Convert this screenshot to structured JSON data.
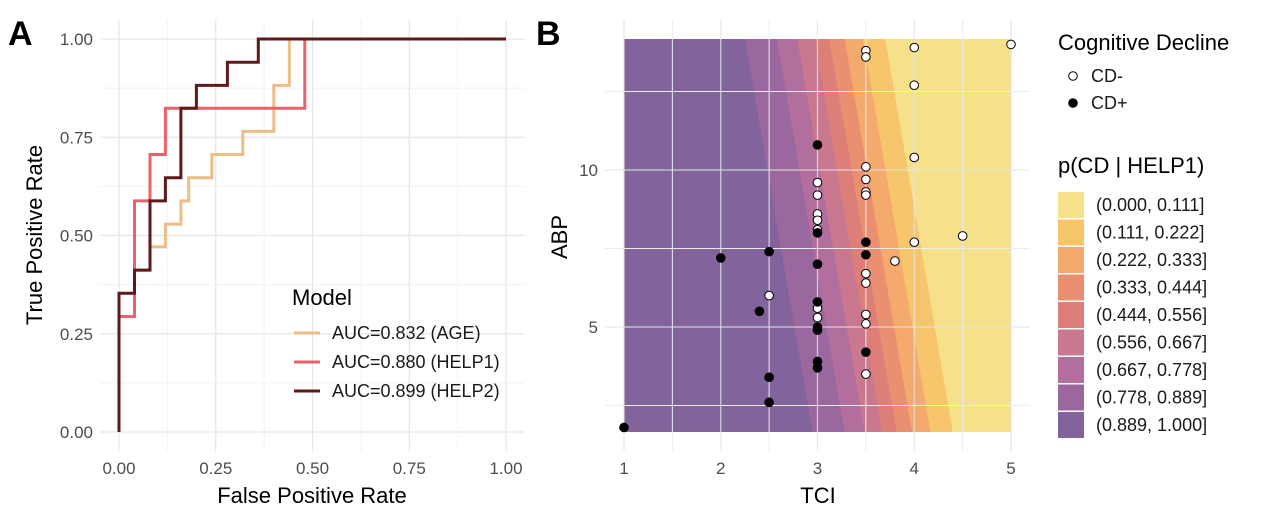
{
  "panel_a": {
    "label": "A",
    "chart_data": {
      "type": "line",
      "xlabel": "False Positive Rate",
      "ylabel": "True Positive Rate",
      "xlim": [
        0,
        1
      ],
      "ylim": [
        0,
        1
      ],
      "x_ticks": [
        "0.00",
        "0.25",
        "0.50",
        "0.75",
        "1.00"
      ],
      "y_ticks": [
        "0.00",
        "0.25",
        "0.50",
        "0.75",
        "1.00"
      ],
      "grid": true,
      "legend_title": "Model",
      "legend_position": "bottom-right",
      "series": [
        {
          "name": "AUC=0.832 (AGE)",
          "color": "#ebbe86",
          "points": [
            [
              0,
              0
            ],
            [
              0,
              0.294
            ],
            [
              0.04,
              0.294
            ],
            [
              0.04,
              0.412
            ],
            [
              0.08,
              0.412
            ],
            [
              0.08,
              0.471
            ],
            [
              0.12,
              0.471
            ],
            [
              0.12,
              0.529
            ],
            [
              0.16,
              0.529
            ],
            [
              0.16,
              0.588
            ],
            [
              0.18,
              0.588
            ],
            [
              0.18,
              0.647
            ],
            [
              0.24,
              0.647
            ],
            [
              0.24,
              0.706
            ],
            [
              0.32,
              0.706
            ],
            [
              0.32,
              0.765
            ],
            [
              0.36,
              0.765
            ],
            [
              0.36,
              0.765
            ],
            [
              0.4,
              0.765
            ],
            [
              0.4,
              0.882
            ],
            [
              0.44,
              0.882
            ],
            [
              0.44,
              1.0
            ],
            [
              1.0,
              1.0
            ]
          ]
        },
        {
          "name": "AUC=0.880 (HELP1)",
          "color": "#e8636a",
          "points": [
            [
              0,
              0
            ],
            [
              0,
              0.294
            ],
            [
              0.04,
              0.294
            ],
            [
              0.04,
              0.588
            ],
            [
              0.08,
              0.588
            ],
            [
              0.08,
              0.706
            ],
            [
              0.12,
              0.706
            ],
            [
              0.12,
              0.824
            ],
            [
              0.48,
              0.824
            ],
            [
              0.48,
              1.0
            ],
            [
              1.0,
              1.0
            ]
          ]
        },
        {
          "name": "AUC=0.899 (HELP2)",
          "color": "#5c1a1a",
          "points": [
            [
              0,
              0
            ],
            [
              0,
              0.353
            ],
            [
              0.04,
              0.353
            ],
            [
              0.04,
              0.412
            ],
            [
              0.08,
              0.412
            ],
            [
              0.08,
              0.588
            ],
            [
              0.12,
              0.588
            ],
            [
              0.12,
              0.647
            ],
            [
              0.16,
              0.647
            ],
            [
              0.16,
              0.824
            ],
            [
              0.2,
              0.824
            ],
            [
              0.2,
              0.882
            ],
            [
              0.28,
              0.882
            ],
            [
              0.28,
              0.941
            ],
            [
              0.36,
              0.941
            ],
            [
              0.36,
              1.0
            ],
            [
              1.0,
              1.0
            ]
          ]
        }
      ]
    }
  },
  "panel_b": {
    "label": "B",
    "chart_data": {
      "type": "scatter",
      "xlabel": "TCI",
      "ylabel": "ABP",
      "xlim": [
        0.92,
        5.08
      ],
      "ylim": [
        1.6,
        14.3
      ],
      "x_ticks": [
        "1",
        "2",
        "3",
        "4",
        "5"
      ],
      "y_ticks": [
        "5",
        "10"
      ],
      "grid": true,
      "background_contour": {
        "legend_title": "p(CD | HELP1)",
        "bands": [
          {
            "label": "(0.000, 0.111]",
            "color": "#f7e08a"
          },
          {
            "label": "(0.111, 0.222]",
            "color": "#f7c56c"
          },
          {
            "label": "(0.222, 0.333]",
            "color": "#f3aa6c"
          },
          {
            "label": "(0.333, 0.444]",
            "color": "#ea9071"
          },
          {
            "label": "(0.444, 0.556]",
            "color": "#dd7f78"
          },
          {
            "label": "(0.556, 0.667]",
            "color": "#c9788f"
          },
          {
            "label": "(0.667, 0.778]",
            "color": "#b26e9c"
          },
          {
            "label": "(0.778, 0.889]",
            "color": "#9a679f"
          },
          {
            "label": "(0.889, 1.000]",
            "color": "#82639b"
          }
        ]
      },
      "legend_title": "Cognitive Decline",
      "series": [
        {
          "name": "CD-",
          "marker": "open-circle",
          "points": [
            [
              2.5,
              6.0
            ],
            [
              3.0,
              9.6
            ],
            [
              3.0,
              9.2
            ],
            [
              3.0,
              8.6
            ],
            [
              3.0,
              8.4
            ],
            [
              3.0,
              8.1
            ],
            [
              3.0,
              5.6
            ],
            [
              3.0,
              5.3
            ],
            [
              3.5,
              13.8
            ],
            [
              3.5,
              13.6
            ],
            [
              3.5,
              10.1
            ],
            [
              3.5,
              9.7
            ],
            [
              3.5,
              9.3
            ],
            [
              3.5,
              9.2
            ],
            [
              3.5,
              6.7
            ],
            [
              3.5,
              6.4
            ],
            [
              3.5,
              5.4
            ],
            [
              3.5,
              5.1
            ],
            [
              3.5,
              3.5
            ],
            [
              3.8,
              7.1
            ],
            [
              4.0,
              13.9
            ],
            [
              4.0,
              12.7
            ],
            [
              4.0,
              10.4
            ],
            [
              4.0,
              7.7
            ],
            [
              4.5,
              7.9
            ],
            [
              5.0,
              14.0
            ]
          ]
        },
        {
          "name": "CD+",
          "marker": "filled-circle",
          "points": [
            [
              1.0,
              1.8
            ],
            [
              2.0,
              7.2
            ],
            [
              2.4,
              5.5
            ],
            [
              2.5,
              7.4
            ],
            [
              2.5,
              3.4
            ],
            [
              2.5,
              2.6
            ],
            [
              3.0,
              10.8
            ],
            [
              3.0,
              8.0
            ],
            [
              3.0,
              7.0
            ],
            [
              3.0,
              5.8
            ],
            [
              3.0,
              5.0
            ],
            [
              3.0,
              4.9
            ],
            [
              3.0,
              3.9
            ],
            [
              3.0,
              3.7
            ],
            [
              3.5,
              7.7
            ],
            [
              3.5,
              7.3
            ],
            [
              3.5,
              4.2
            ]
          ]
        }
      ]
    }
  }
}
